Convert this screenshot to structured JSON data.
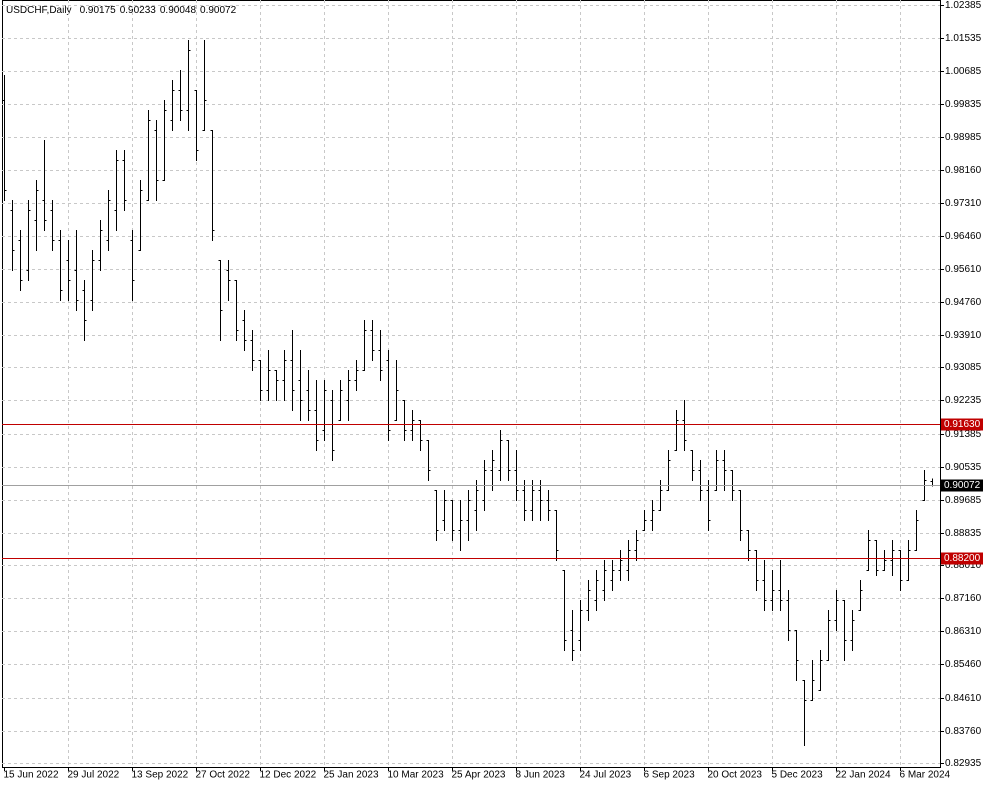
{
  "chart_data": {
    "type": "ohlc",
    "title": "USDCHF,Daily",
    "color": "#000000",
    "grid": true,
    "categories": [
      "15 Jun 2022",
      null,
      null,
      null,
      null,
      null,
      null,
      null,
      "29 Jul 2022",
      null,
      null,
      null,
      null,
      null,
      null,
      null,
      "13 Sep 2022",
      null,
      null,
      null,
      null,
      null,
      null,
      null,
      "27 Oct 2022",
      null,
      null,
      null,
      null,
      null,
      null,
      null,
      "12 Dec 2022",
      null,
      null,
      null,
      null,
      null,
      null,
      null,
      "25 Jan 2023",
      null,
      null,
      null,
      null,
      null,
      null,
      null,
      "10 Mar 2023",
      null,
      null,
      null,
      null,
      null,
      null,
      null,
      "25 Apr 2023",
      null,
      null,
      null,
      null,
      null,
      null,
      null,
      "8 Jun 2023",
      null,
      null,
      null,
      null,
      null,
      null,
      null,
      "24 Jul 2023",
      null,
      null,
      null,
      null,
      null,
      null,
      null,
      "6 Sep 2023",
      null,
      null,
      null,
      null,
      null,
      null,
      null,
      "20 Oct 2023",
      null,
      null,
      null,
      null,
      null,
      null,
      null,
      "5 Dec 2023",
      null,
      null,
      null,
      null,
      null,
      null,
      null,
      "22 Jan 2024",
      null,
      null,
      null,
      null,
      null,
      null,
      null,
      "6 Mar 2024",
      null,
      null,
      null,
      null
    ],
    "open": [
      0.9994,
      0.9712,
      0.9635,
      0.9558,
      0.9686,
      0.9738,
      0.9712,
      0.9635,
      0.9584,
      0.9558,
      0.9507,
      0.9481,
      0.9584,
      0.9635,
      0.9712,
      0.984,
      0.9635,
      0.961,
      0.9738,
      0.9917,
      0.9789,
      0.9943,
      1.002,
      0.9969,
      1.002,
      0.9917,
      0.9917,
      0.9584,
      0.9558,
      0.9533,
      0.943,
      0.9379,
      0.9327,
      0.925,
      0.9302,
      0.9276,
      0.9327,
      0.9276,
      0.925,
      0.9199,
      0.9148,
      0.9225,
      0.9173,
      0.9225,
      0.9276,
      0.9302,
      0.9404,
      0.9353,
      0.9327,
      0.9173,
      0.9225,
      0.9148,
      0.9173,
      0.9122,
      0.8994,
      0.8917,
      0.8968,
      0.8891,
      0.8917,
      0.8942,
      0.8968,
      0.9045,
      0.9045,
      0.9122,
      0.9045,
      0.8994,
      0.8942,
      0.8994,
      0.8968,
      0.8942,
      0.8788,
      0.8634,
      0.8609,
      0.8686,
      0.8711,
      0.8737,
      0.8763,
      0.8788,
      0.8788,
      0.884,
      0.8891,
      0.8917,
      0.8942,
      0.8994,
      0.9096,
      0.9173,
      0.9096,
      0.9045,
      0.8994,
      0.8994,
      0.9071,
      0.9045,
      0.8994,
      0.8891,
      0.884,
      0.8763,
      0.8711,
      0.8737,
      0.8711,
      0.8634,
      0.8506,
      0.8455,
      0.8481,
      0.8557,
      0.866,
      0.8711,
      0.8609,
      0.8686,
      0.8788,
      0.8865,
      0.8788,
      0.8814,
      0.884,
      0.8763,
      0.884,
      0.8968,
      0.90175
    ],
    "high": [
      1.0059,
      0.9738,
      0.9661,
      0.9738,
      0.9789,
      0.9892,
      0.9738,
      0.9661,
      0.9635,
      0.9661,
      0.9533,
      0.961,
      0.9686,
      0.9763,
      0.9866,
      0.9866,
      0.9661,
      0.9789,
      0.9969,
      0.9943,
      0.9994,
      1.0046,
      1.0071,
      1.0148,
      1.002,
      1.0148,
      0.9917,
      0.9584,
      0.9584,
      0.9533,
      0.9456,
      0.9404,
      0.9327,
      0.9353,
      0.9302,
      0.9353,
      0.9404,
      0.9353,
      0.9302,
      0.9276,
      0.9276,
      0.925,
      0.9276,
      0.9302,
      0.9327,
      0.943,
      0.943,
      0.9404,
      0.9353,
      0.9327,
      0.9225,
      0.9199,
      0.9173,
      0.9122,
      0.8994,
      0.8994,
      0.8968,
      0.8968,
      0.8994,
      0.9019,
      0.9071,
      0.9096,
      0.9148,
      0.9122,
      0.9096,
      0.9019,
      0.9019,
      0.9019,
      0.8994,
      0.8942,
      0.8788,
      0.8686,
      0.8711,
      0.8763,
      0.8788,
      0.8814,
      0.8814,
      0.884,
      0.8865,
      0.8891,
      0.8942,
      0.8968,
      0.9019,
      0.9096,
      0.9199,
      0.9225,
      0.9096,
      0.9071,
      0.9019,
      0.9096,
      0.9096,
      0.9045,
      0.8994,
      0.8891,
      0.884,
      0.8814,
      0.8788,
      0.8814,
      0.8737,
      0.8634,
      0.8506,
      0.8557,
      0.8583,
      0.8686,
      0.8737,
      0.8711,
      0.8686,
      0.8763,
      0.8891,
      0.8865,
      0.884,
      0.8865,
      0.884,
      0.8865,
      0.8942,
      0.9045,
      0.90233
    ],
    "low": [
      0.9738,
      0.9558,
      0.9507,
      0.9533,
      0.961,
      0.9661,
      0.961,
      0.9481,
      0.9481,
      0.9456,
      0.9379,
      0.9456,
      0.9558,
      0.961,
      0.9661,
      0.9712,
      0.9481,
      0.961,
      0.9738,
      0.9738,
      0.9789,
      0.9917,
      0.9943,
      0.9917,
      0.984,
      0.9917,
      0.9635,
      0.9379,
      0.9481,
      0.9379,
      0.9353,
      0.9302,
      0.9225,
      0.9225,
      0.9225,
      0.9225,
      0.9199,
      0.9173,
      0.9173,
      0.9096,
      0.9122,
      0.9071,
      0.9173,
      0.9173,
      0.925,
      0.9302,
      0.9327,
      0.9276,
      0.9122,
      0.9173,
      0.9122,
      0.9122,
      0.9096,
      0.9019,
      0.8865,
      0.8891,
      0.8865,
      0.884,
      0.8865,
      0.8891,
      0.8942,
      0.8994,
      0.9019,
      0.9019,
      0.8968,
      0.8917,
      0.8917,
      0.8917,
      0.8917,
      0.8814,
      0.8583,
      0.8557,
      0.8583,
      0.866,
      0.8686,
      0.8711,
      0.8737,
      0.8763,
      0.8763,
      0.8814,
      0.8891,
      0.8891,
      0.8942,
      0.8994,
      0.9096,
      0.9096,
      0.9019,
      0.8968,
      0.8891,
      0.8994,
      0.8994,
      0.8968,
      0.8865,
      0.8814,
      0.8737,
      0.8686,
      0.8686,
      0.8686,
      0.8609,
      0.8506,
      0.8339,
      0.8455,
      0.8481,
      0.8557,
      0.8634,
      0.8557,
      0.8583,
      0.8686,
      0.8788,
      0.8776,
      0.8788,
      0.8776,
      0.8737,
      0.8763,
      0.884,
      0.8968,
      0.90048
    ],
    "close": [
      0.9763,
      0.961,
      0.9533,
      0.9712,
      0.9763,
      0.9686,
      0.9635,
      0.9507,
      0.9533,
      0.9481,
      0.943,
      0.9584,
      0.9661,
      0.9738,
      0.984,
      0.9738,
      0.9533,
      0.9763,
      0.9943,
      0.9789,
      0.9969,
      1.002,
      0.9969,
      1.0123,
      0.9866,
      0.9994,
      0.9661,
      0.9456,
      0.9533,
      0.9404,
      0.9379,
      0.9327,
      0.925,
      0.9302,
      0.9276,
      0.9327,
      0.925,
      0.9225,
      0.9199,
      0.9122,
      0.925,
      0.9096,
      0.925,
      0.9276,
      0.9302,
      0.9404,
      0.9353,
      0.9302,
      0.9148,
      0.925,
      0.9148,
      0.9173,
      0.9122,
      0.9045,
      0.8891,
      0.8968,
      0.8891,
      0.8917,
      0.8968,
      0.8994,
      0.9045,
      0.9071,
      0.9122,
      0.9045,
      0.8994,
      0.8942,
      0.8994,
      0.8968,
      0.8942,
      0.884,
      0.8609,
      0.8583,
      0.8686,
      0.8737,
      0.8763,
      0.8788,
      0.8788,
      0.8814,
      0.884,
      0.8865,
      0.8917,
      0.8942,
      0.8994,
      0.9071,
      0.9173,
      0.9122,
      0.9045,
      0.8994,
      0.8917,
      0.9071,
      0.9045,
      0.8994,
      0.8891,
      0.884,
      0.8763,
      0.8711,
      0.8737,
      0.8711,
      0.8634,
      0.8557,
      0.8455,
      0.8506,
      0.8557,
      0.866,
      0.8711,
      0.8609,
      0.866,
      0.8737,
      0.8865,
      0.8788,
      0.8814,
      0.884,
      0.8763,
      0.884,
      0.8917,
      0.9019,
      0.90072
    ],
    "ylim": [
      0.8283,
      1.0251
    ],
    "yticks": [
      1.02385,
      1.01535,
      1.00685,
      0.99835,
      0.98985,
      {
        "value": 0.9816,
        "label": "0.98160"
      },
      {
        "value": 0.9731,
        "label": "0.97310"
      },
      {
        "value": 0.9646,
        "label": "0.96460"
      },
      {
        "value": 0.9561,
        "label": "0.95610"
      },
      {
        "value": 0.9476,
        "label": "0.94760"
      },
      {
        "value": 0.9391,
        "label": "0.93910"
      },
      0.93085,
      0.92235,
      0.91385,
      0.90535,
      0.89685,
      0.88835,
      {
        "value": 0.8801,
        "label": "0.88010"
      },
      {
        "value": 0.8716,
        "label": "0.87160"
      },
      {
        "value": 0.8631,
        "label": "0.86310"
      },
      {
        "value": 0.8546,
        "label": "0.85460"
      },
      {
        "value": 0.8461,
        "label": "0.84610"
      },
      {
        "value": 0.8376,
        "label": "0.83760"
      },
      0.82935
    ],
    "hlines": [
      {
        "value": 0.9163,
        "label": "0.91630",
        "color": "#c00000"
      },
      {
        "value": 0.882,
        "label": "0.88200",
        "color": "#c00000"
      }
    ],
    "last_price_color": "#a0a0a0"
  }
}
